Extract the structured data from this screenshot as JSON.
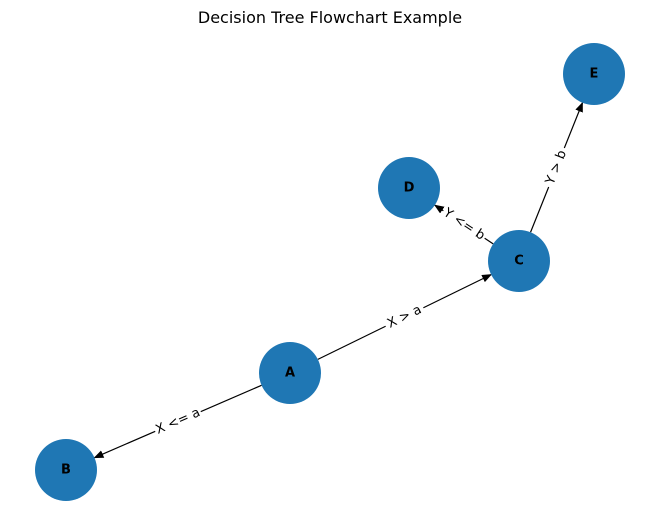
{
  "title": "Decision Tree Flowchart Example",
  "colors": {
    "node": "#1f77b4",
    "edge": "#000000",
    "label": "#000000",
    "background": "#ffffff"
  },
  "nodes": [
    {
      "id": "A",
      "label": "A"
    },
    {
      "id": "B",
      "label": "B"
    },
    {
      "id": "C",
      "label": "C"
    },
    {
      "id": "D",
      "label": "D"
    },
    {
      "id": "E",
      "label": "E"
    }
  ],
  "edges": [
    {
      "from": "A",
      "to": "B",
      "label": "X <= a"
    },
    {
      "from": "A",
      "to": "C",
      "label": "X > a"
    },
    {
      "from": "C",
      "to": "D",
      "label": "Y <= b"
    },
    {
      "from": "C",
      "to": "E",
      "label": "Y > b"
    }
  ]
}
